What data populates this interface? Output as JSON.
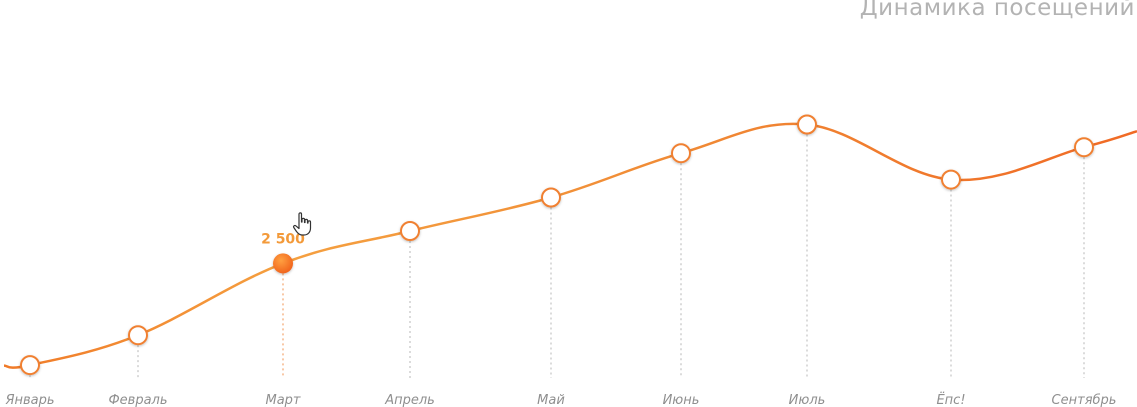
{
  "chart_data": {
    "type": "line",
    "title": "Динамика посещений",
    "categories": [
      "Январь",
      "Февраль",
      "Март",
      "Апрель",
      "Май",
      "Июнь",
      "Июль",
      "Ёпс!",
      "Сентябрь"
    ],
    "values": [
      1650,
      1900,
      2500,
      2770,
      3050,
      3420,
      3660,
      3200,
      3470
    ],
    "highlighted_point": {
      "category": "Март",
      "label": "2 500"
    },
    "ylim": [
      1300,
      4700
    ],
    "grid": false,
    "legend": "none",
    "colors": {
      "line": "#f08030",
      "line_light": "#f5a040",
      "marker_fill": "#ffffff",
      "highlight_fill": "#f07a20",
      "guide": "#9a9a9a",
      "guide_highlight": "#f08030",
      "label": "#8f8f8f",
      "title": "#b3b3b3"
    },
    "cursor_icon": "hand-pointer-icon"
  }
}
